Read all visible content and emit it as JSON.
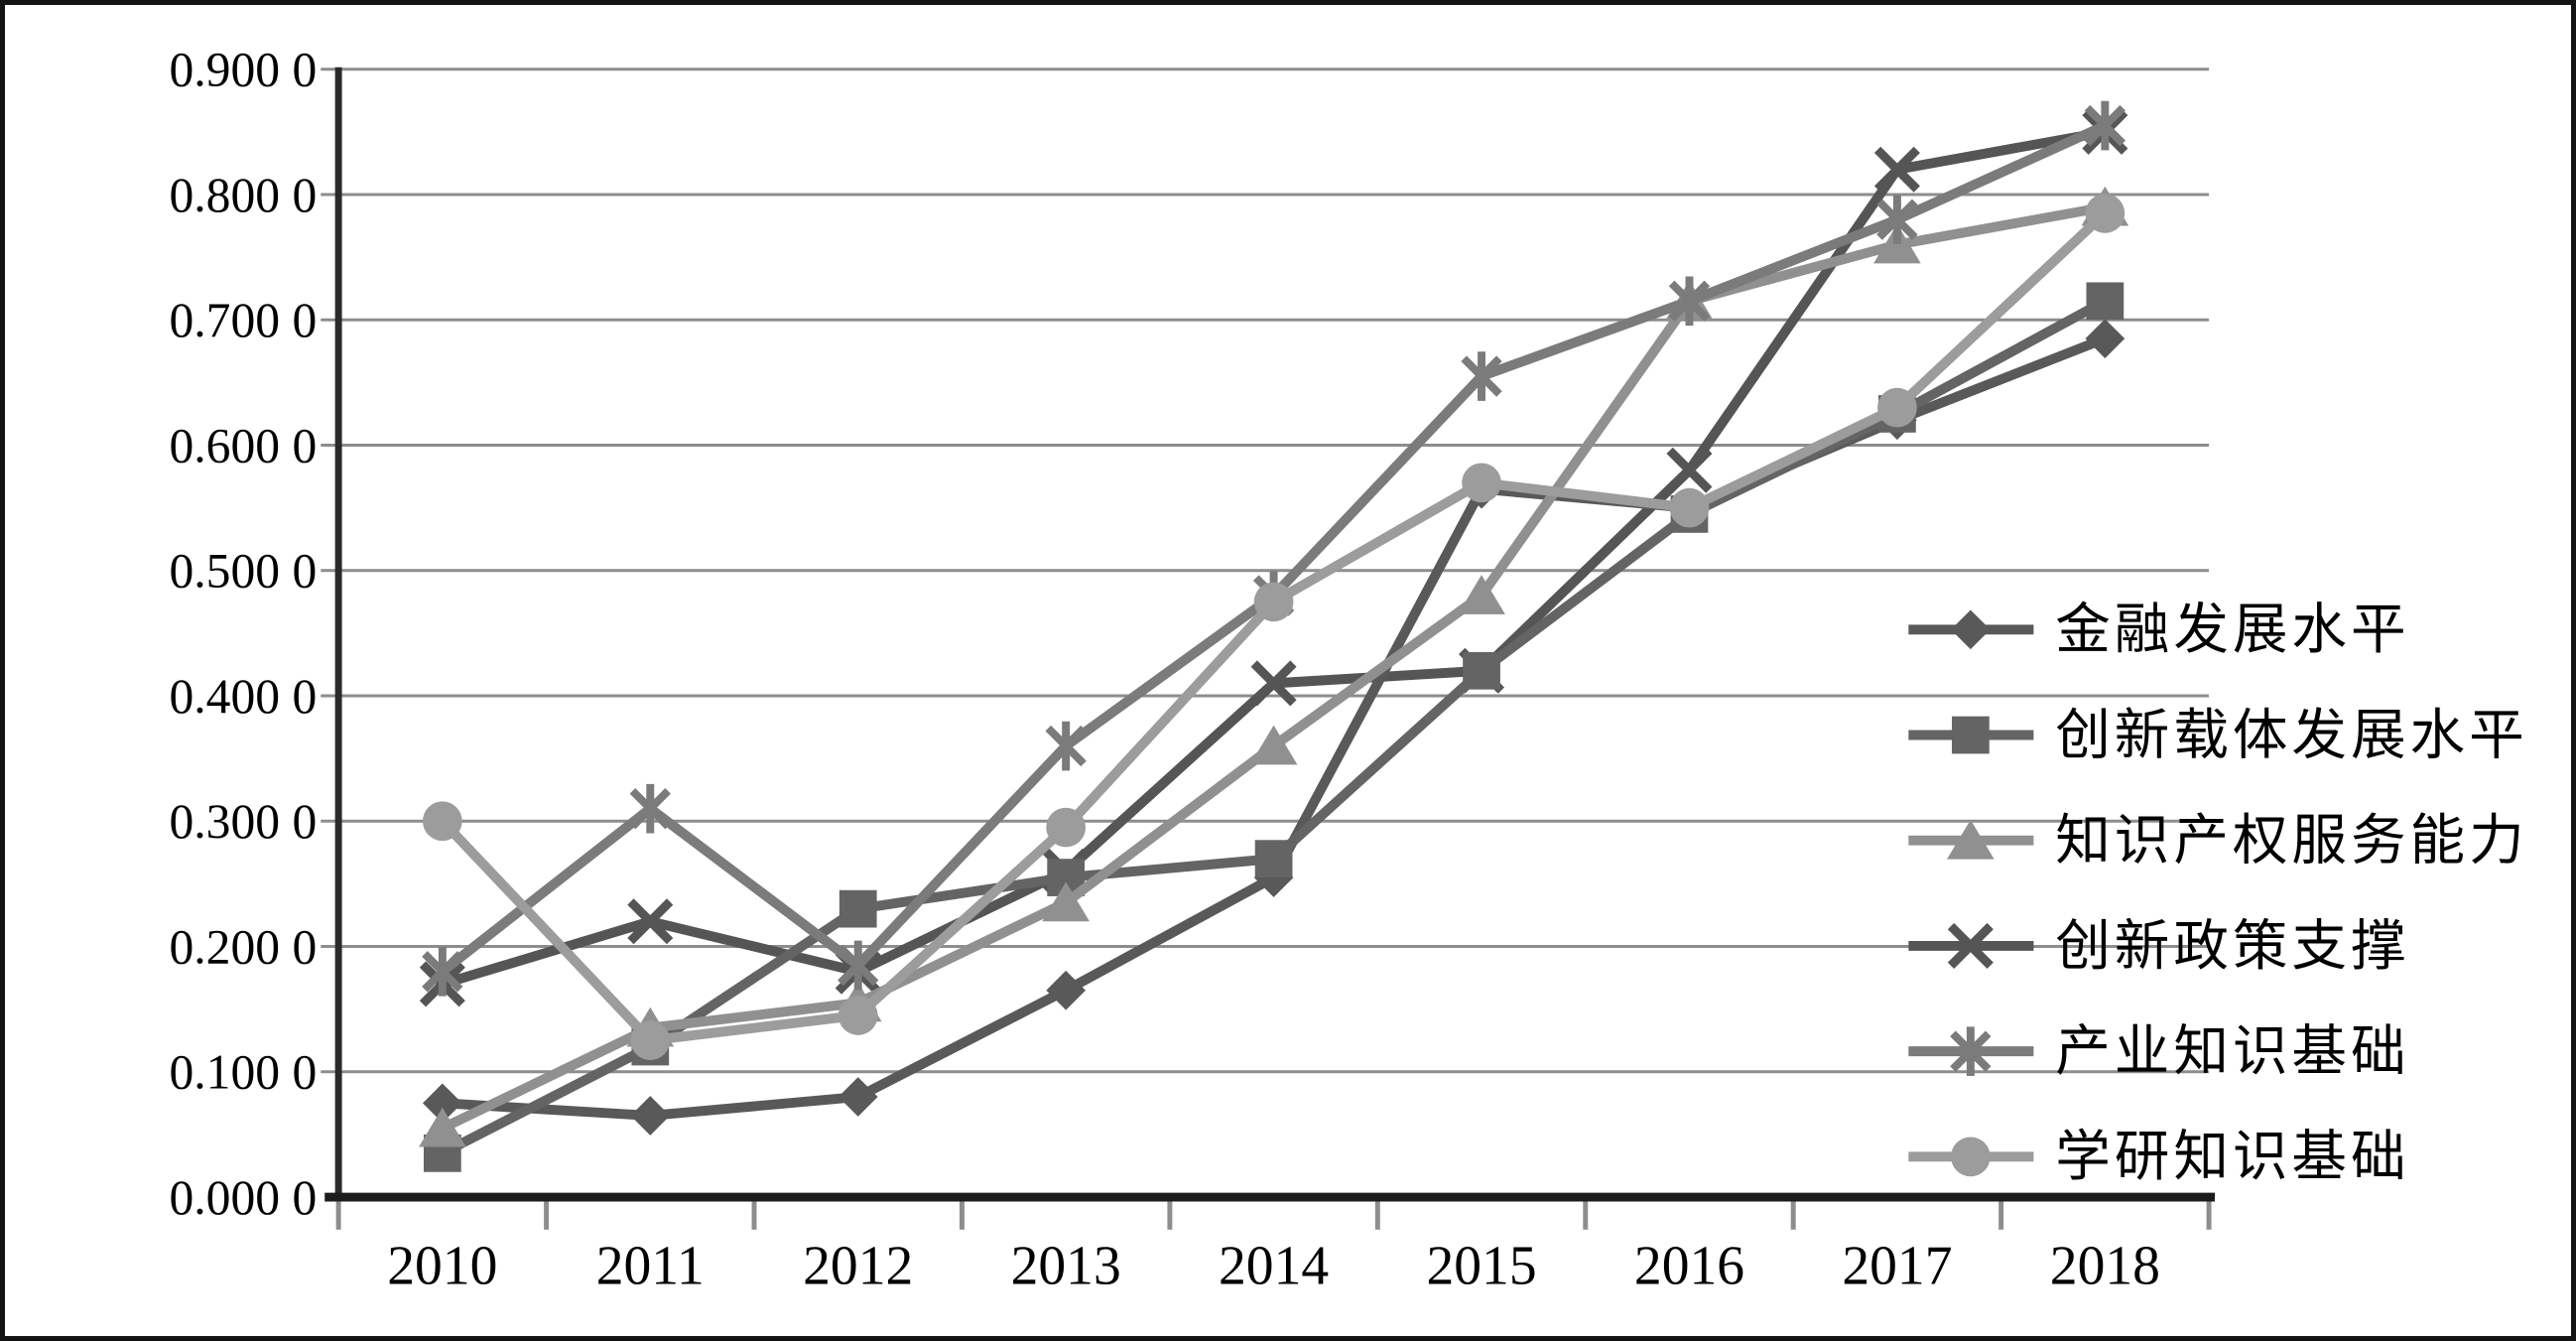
{
  "chart_data": {
    "type": "line",
    "title": "",
    "xlabel": "",
    "ylabel": "",
    "x_categories": [
      "2010",
      "2011",
      "2012",
      "2013",
      "2014",
      "2015",
      "2016",
      "2017",
      "2018"
    ],
    "y_axis": {
      "min": 0.0,
      "max": 0.9,
      "step": 0.1,
      "tick_labels": [
        "0.000 0",
        "0.100 0",
        "0.200 0",
        "0.300 0",
        "0.400 0",
        "0.500 0",
        "0.600 0",
        "0.700 0",
        "0.800 0",
        "0.900 0"
      ]
    },
    "grid": true,
    "legend_position": "right-middle-overlay",
    "series": [
      {
        "name": "金融发展水平",
        "marker": "diamond",
        "color": "#595959",
        "values": [
          0.075,
          0.065,
          0.08,
          0.165,
          0.255,
          0.565,
          0.55,
          0.62,
          0.685
        ]
      },
      {
        "name": "创新载体发展水平",
        "marker": "square",
        "color": "#646464",
        "values": [
          0.035,
          0.12,
          0.23,
          0.255,
          0.27,
          0.42,
          0.545,
          0.625,
          0.715
        ]
      },
      {
        "name": "知识产权服务能力",
        "marker": "triangle",
        "color": "#909090",
        "values": [
          0.055,
          0.135,
          0.155,
          0.235,
          0.36,
          0.48,
          0.715,
          0.76,
          0.79
        ]
      },
      {
        "name": "创新政策支撑",
        "marker": "x",
        "color": "#555555",
        "values": [
          0.17,
          0.22,
          0.18,
          0.26,
          0.41,
          0.42,
          0.58,
          0.82,
          0.85
        ]
      },
      {
        "name": "产业知识基础",
        "marker": "asterisk",
        "color": "#7b7b7b",
        "values": [
          0.18,
          0.31,
          0.185,
          0.36,
          0.48,
          0.655,
          0.715,
          0.78,
          0.855
        ]
      },
      {
        "name": "学研知识基础",
        "marker": "circle",
        "color": "#9c9c9c",
        "values": [
          0.3,
          0.125,
          0.145,
          0.295,
          0.475,
          0.57,
          0.55,
          0.63,
          0.785
        ]
      }
    ],
    "style": {
      "grid_color": "#8d8d8d",
      "y_axis_color": "#2a2a2a",
      "x_axis_color": "#1c1c1c",
      "tick_color": "#8d8d8d",
      "background": "#ffffff"
    }
  }
}
